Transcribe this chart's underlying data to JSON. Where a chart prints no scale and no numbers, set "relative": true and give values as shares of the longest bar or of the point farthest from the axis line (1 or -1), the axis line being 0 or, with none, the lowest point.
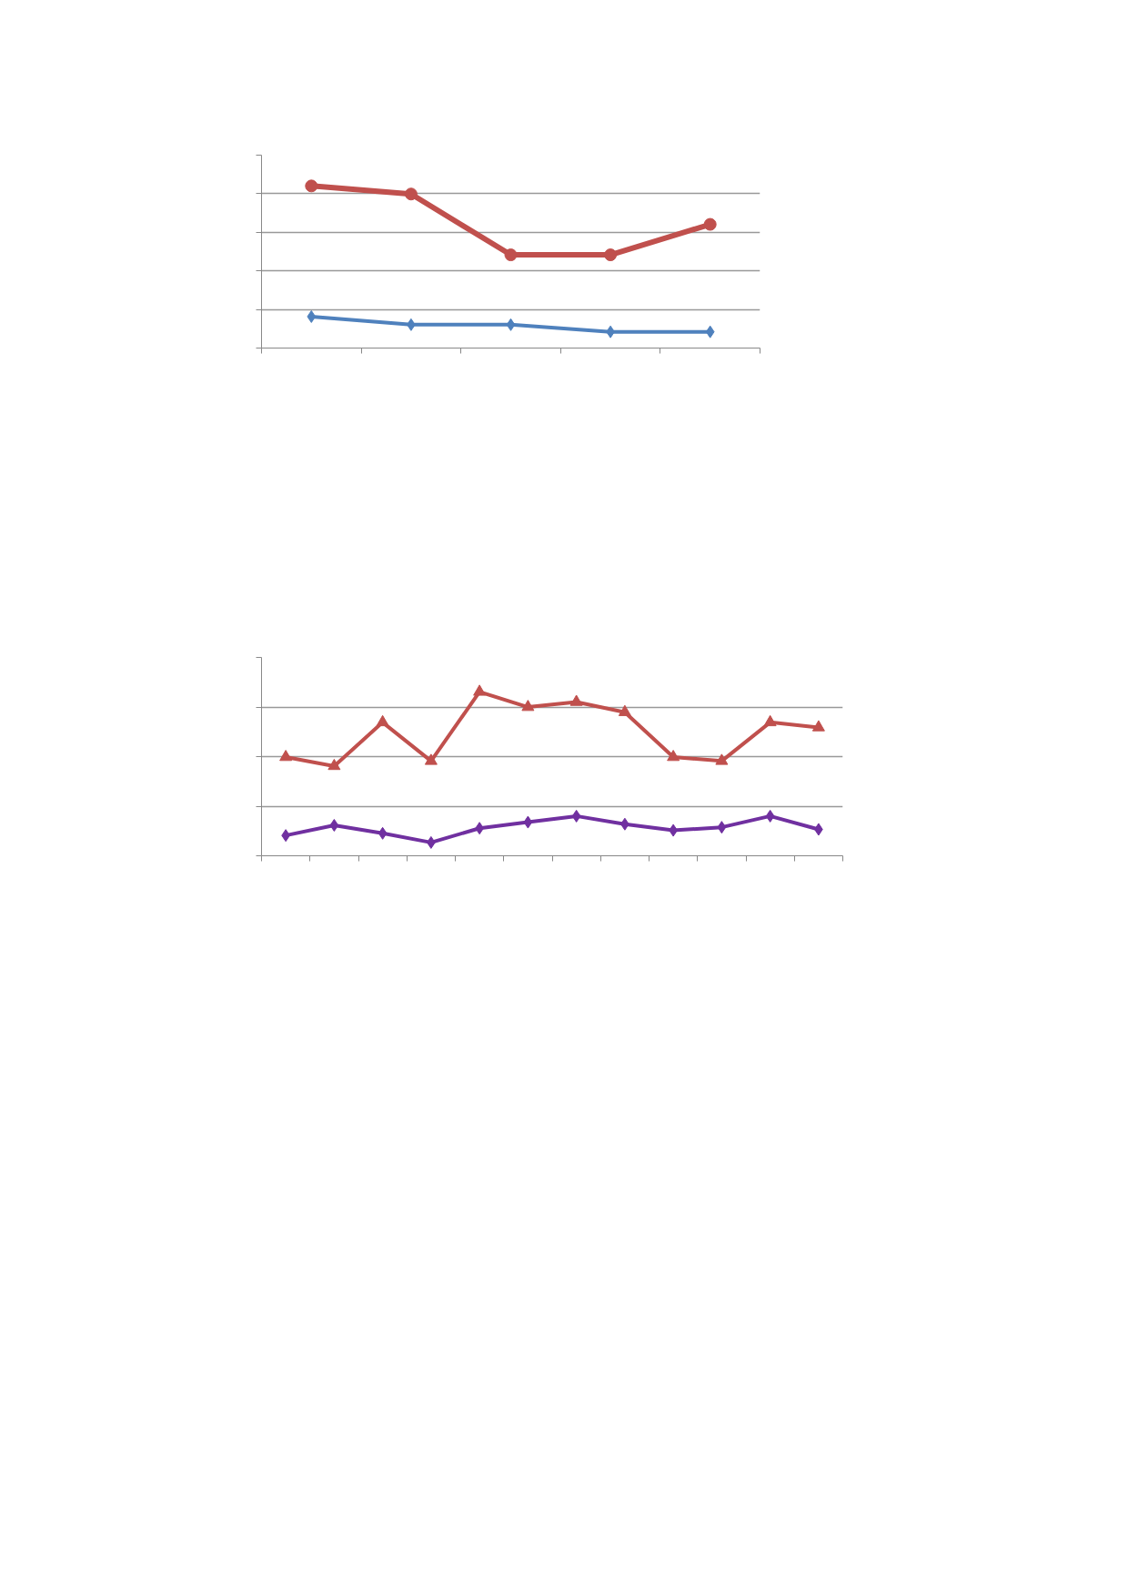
{
  "chart_data": [
    {
      "type": "line",
      "relative": true,
      "categories": [
        null,
        null,
        null,
        null,
        null
      ],
      "grid": "y",
      "tick_labels": false,
      "series": [
        {
          "color": "#4f81bd",
          "marker": "diamond",
          "values": [
            0.194,
            0.144,
            0.144,
            0.1,
            0.1
          ]
        },
        {
          "color": "#c0504d",
          "marker": "circle",
          "values": [
            1,
            0.95,
            0.575,
            0.575,
            0.763
          ]
        }
      ]
    },
    {
      "type": "line",
      "relative": true,
      "categories": [
        null,
        null,
        null,
        null,
        null,
        null,
        null,
        null,
        null,
        null,
        null,
        null
      ],
      "grid": "y",
      "tick_labels": false,
      "series": [
        {
          "color": "#7030a0",
          "marker": "diamond",
          "values": [
            0.124,
            0.186,
            0.137,
            0.081,
            0.168,
            0.205,
            0.242,
            0.193,
            0.155,
            0.174,
            0.242,
            0.161
          ]
        },
        {
          "color": "#c0504d",
          "marker": "triangle",
          "values": [
            0.602,
            0.547,
            0.814,
            0.578,
            1,
            0.907,
            0.938,
            0.876,
            0.602,
            0.578,
            0.814,
            0.783
          ]
        }
      ]
    }
  ]
}
